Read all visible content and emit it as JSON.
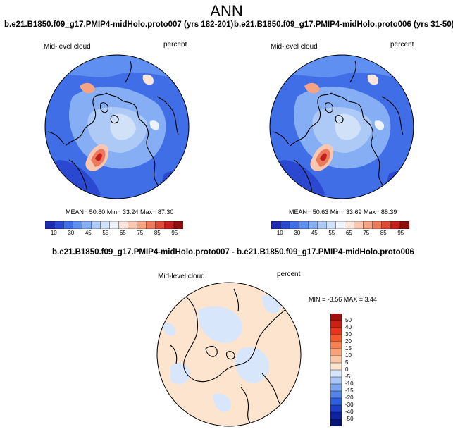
{
  "title": "ANN",
  "panels": [
    {
      "id": "left",
      "title": "b.e21.B1850.f09_g17.PMIP4-midHolo.proto007 (yrs 182-201)",
      "variable": "Mid-level cloud",
      "units": "percent",
      "stats": {
        "mean": "50.80",
        "min": "33.24",
        "max": "87.30"
      },
      "stats_text": "MEAN= 50.80  Min= 33.24  Max= 87.30"
    },
    {
      "id": "right",
      "title": "b.e21.B1850.f09_g17.PMIP4-midHolo.proto006 (yrs 31-50)",
      "variable": "Mid-level cloud",
      "units": "percent",
      "stats": {
        "mean": "50.63",
        "min": "33.69",
        "max": "88.39"
      },
      "stats_text": "MEAN= 50.63  Min= 33.69  Max= 88.39"
    }
  ],
  "diff_panel": {
    "title": "b.e21.B1850.f09_g17.PMIP4-midHolo.proto007 - b.e21.B1850.f09_g17.PMIP4-midHolo.proto006",
    "variable": "Mid-level cloud",
    "units": "percent",
    "stats": {
      "min": "-3.56",
      "max": "3.44"
    },
    "stats_text": "MIN =  -3.56 MAX =   3.44"
  },
  "colorbar_main": {
    "labels": [
      "10",
      "30",
      "45",
      "55",
      "65",
      "75",
      "85",
      "95"
    ],
    "colors": [
      "#1d2bb0",
      "#2a49d0",
      "#3f6ee6",
      "#5f8ff0",
      "#86aef4",
      "#adc9f6",
      "#d1e1f8",
      "#eef3fb",
      "#fbe5da",
      "#f9c7b1",
      "#f4a385",
      "#ec7b5d",
      "#dd4a36",
      "#c21f1d",
      "#8e0d0d"
    ]
  },
  "colorbar_diff": {
    "labels": [
      "50",
      "40",
      "30",
      "20",
      "15",
      "10",
      "5",
      "0",
      "-5",
      "-10",
      "-15",
      "-20",
      "-30",
      "-40",
      "-50"
    ],
    "colors": [
      "#a0100f",
      "#cc1f15",
      "#e8361c",
      "#f25a2e",
      "#f78050",
      "#f9a27a",
      "#fbc6a6",
      "#fde4cf",
      "#d7e6fa",
      "#a9c6f5",
      "#7ea5ee",
      "#5683e6",
      "#2f5fdc",
      "#1c3fc6",
      "#0f22a2",
      "#081577"
    ]
  }
}
